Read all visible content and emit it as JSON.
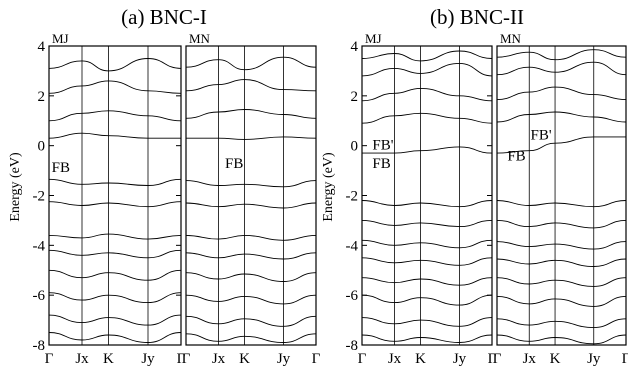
{
  "figure": {
    "panels": [
      {
        "title": "(a) BNC-I"
      },
      {
        "title": "(b) BNC-II"
      }
    ],
    "ylabel": "Energy (eV)"
  },
  "chart_data": [
    {
      "type": "line",
      "panel": "(a) BNC-I",
      "subpanel": "MJ",
      "ylabel": "Energy (eV)",
      "ylim": [
        -8,
        4
      ],
      "yticks": [
        4,
        2,
        0,
        -2,
        -4,
        -6,
        -8
      ],
      "x_path": [
        "Γ",
        "Jx",
        "K",
        "Jy",
        "Γ"
      ],
      "x_ticks": [
        0,
        0.25,
        0.45,
        0.75,
        1
      ],
      "annotations": [
        {
          "text": "FB",
          "x": 0.02,
          "y": -0.85
        }
      ],
      "series": [
        {
          "values": [
            0.3,
            0.5,
            0.4,
            0.3,
            0.3
          ]
        },
        {
          "values": [
            -1.35,
            -1.55,
            -1.5,
            -1.6,
            -1.35
          ]
        },
        {
          "values": [
            -2.25,
            -2.4,
            -2.3,
            -2.45,
            -2.25
          ]
        },
        {
          "values": [
            -3.6,
            -3.7,
            -3.55,
            -3.75,
            -3.6
          ]
        },
        {
          "values": [
            -4.2,
            -4.4,
            -4.3,
            -4.5,
            -4.2
          ]
        },
        {
          "values": [
            -5.0,
            -5.3,
            -5.1,
            -5.4,
            -5.0
          ]
        },
        {
          "values": [
            -5.9,
            -6.2,
            -6.0,
            -6.3,
            -5.9
          ]
        },
        {
          "values": [
            -6.8,
            -7.1,
            -6.9,
            -7.2,
            -6.8
          ]
        },
        {
          "values": [
            -7.5,
            -7.8,
            -7.6,
            -7.9,
            -7.5
          ]
        },
        {
          "values": [
            1.0,
            1.3,
            1.4,
            1.2,
            1.0
          ]
        },
        {
          "values": [
            2.1,
            2.4,
            2.6,
            2.2,
            2.1
          ]
        },
        {
          "values": [
            3.1,
            3.4,
            3.0,
            3.5,
            3.1
          ]
        }
      ]
    },
    {
      "type": "line",
      "panel": "(a) BNC-I",
      "subpanel": "MN",
      "ylim": [
        -8,
        4
      ],
      "x_path": [
        "Γ",
        "Jx",
        "K",
        "Jy",
        "Γ"
      ],
      "x_ticks": [
        0,
        0.25,
        0.45,
        0.75,
        1
      ],
      "annotations": [
        {
          "text": "FB",
          "x": 0.3,
          "y": -0.7
        }
      ],
      "series": [
        {
          "values": [
            0.3,
            0.3,
            0.25,
            0.35,
            0.3
          ]
        },
        {
          "values": [
            -1.4,
            -1.6,
            -1.55,
            -1.65,
            -1.4
          ]
        },
        {
          "values": [
            -2.3,
            -2.45,
            -2.35,
            -2.5,
            -2.3
          ]
        },
        {
          "values": [
            -3.6,
            -3.75,
            -3.6,
            -3.8,
            -3.6
          ]
        },
        {
          "values": [
            -4.3,
            -4.5,
            -4.35,
            -4.55,
            -4.3
          ]
        },
        {
          "values": [
            -5.1,
            -5.35,
            -5.15,
            -5.45,
            -5.1
          ]
        },
        {
          "values": [
            -6.0,
            -6.25,
            -6.05,
            -6.35,
            -6.0
          ]
        },
        {
          "values": [
            -6.85,
            -7.15,
            -6.95,
            -7.25,
            -6.85
          ]
        },
        {
          "values": [
            -7.55,
            -7.85,
            -7.65,
            -7.9,
            -7.55
          ]
        },
        {
          "values": [
            1.1,
            1.35,
            1.45,
            1.25,
            1.1
          ]
        },
        {
          "values": [
            2.2,
            2.45,
            2.65,
            2.25,
            2.2
          ]
        },
        {
          "values": [
            3.15,
            3.45,
            3.05,
            3.55,
            3.15
          ]
        }
      ]
    },
    {
      "type": "line",
      "panel": "(b) BNC-II",
      "subpanel": "MJ",
      "ylim": [
        -8,
        4
      ],
      "yticks": [
        4,
        2,
        0,
        -2,
        -4,
        -6,
        -8
      ],
      "x_path": [
        "Γ",
        "Jx",
        "K",
        "Jy",
        "Γ"
      ],
      "x_ticks": [
        0,
        0.25,
        0.45,
        0.75,
        1
      ],
      "annotations": [
        {
          "text": "FB'",
          "x": 0.08,
          "y": 0.05
        },
        {
          "text": "FB",
          "x": 0.08,
          "y": -0.7
        }
      ],
      "series": [
        {
          "values": [
            -0.3,
            -0.3,
            -0.2,
            -0.05,
            -0.3
          ]
        },
        {
          "values": [
            -2.2,
            -2.4,
            -2.3,
            -2.45,
            -2.2
          ]
        },
        {
          "values": [
            -3.0,
            -3.2,
            -3.1,
            -3.25,
            -3.0
          ]
        },
        {
          "values": [
            -3.8,
            -4.0,
            -3.9,
            -4.1,
            -3.8
          ]
        },
        {
          "values": [
            -4.5,
            -4.7,
            -4.6,
            -4.8,
            -4.5
          ]
        },
        {
          "values": [
            -5.3,
            -5.5,
            -5.35,
            -5.6,
            -5.3
          ]
        },
        {
          "values": [
            -6.0,
            -6.3,
            -6.1,
            -6.4,
            -6.0
          ]
        },
        {
          "values": [
            -6.9,
            -7.15,
            -7.0,
            -7.25,
            -6.9
          ]
        },
        {
          "values": [
            -7.6,
            -7.85,
            -7.7,
            -7.9,
            -7.6
          ]
        },
        {
          "values": [
            0.9,
            1.2,
            1.3,
            1.1,
            0.9
          ]
        },
        {
          "values": [
            1.8,
            2.1,
            2.3,
            2.0,
            1.8
          ]
        },
        {
          "values": [
            2.8,
            3.1,
            2.9,
            3.3,
            2.8
          ]
        },
        {
          "values": [
            3.5,
            3.7,
            3.4,
            3.8,
            3.5
          ]
        }
      ]
    },
    {
      "type": "line",
      "panel": "(b) BNC-II",
      "subpanel": "MN",
      "ylim": [
        -8,
        4
      ],
      "x_path": [
        "Γ",
        "Jx",
        "K",
        "Jy",
        "Γ"
      ],
      "x_ticks": [
        0,
        0.25,
        0.45,
        0.75,
        1
      ],
      "annotations": [
        {
          "text": "FB'",
          "x": 0.26,
          "y": 0.45
        },
        {
          "text": "FB",
          "x": 0.08,
          "y": -0.4
        }
      ],
      "series": [
        {
          "values": [
            -0.3,
            -0.2,
            0.1,
            0.35,
            0.35
          ]
        },
        {
          "values": [
            -2.2,
            -2.4,
            -2.3,
            -2.45,
            -2.2
          ]
        },
        {
          "values": [
            -3.0,
            -3.25,
            -3.1,
            -3.3,
            -3.0
          ]
        },
        {
          "values": [
            -3.85,
            -4.05,
            -3.95,
            -4.15,
            -3.85
          ]
        },
        {
          "values": [
            -4.55,
            -4.75,
            -4.6,
            -4.85,
            -4.55
          ]
        },
        {
          "values": [
            -5.3,
            -5.55,
            -5.4,
            -5.65,
            -5.3
          ]
        },
        {
          "values": [
            -6.05,
            -6.35,
            -6.15,
            -6.45,
            -6.05
          ]
        },
        {
          "values": [
            -6.95,
            -7.2,
            -7.05,
            -7.3,
            -6.95
          ]
        },
        {
          "values": [
            -7.6,
            -7.85,
            -7.7,
            -7.95,
            -7.6
          ]
        },
        {
          "values": [
            0.95,
            1.25,
            1.35,
            1.15,
            0.95
          ]
        },
        {
          "values": [
            1.85,
            2.15,
            2.35,
            2.05,
            1.85
          ]
        },
        {
          "values": [
            2.85,
            3.15,
            2.95,
            3.35,
            2.85
          ]
        },
        {
          "values": [
            3.55,
            3.75,
            3.45,
            3.85,
            3.55
          ]
        }
      ]
    }
  ]
}
